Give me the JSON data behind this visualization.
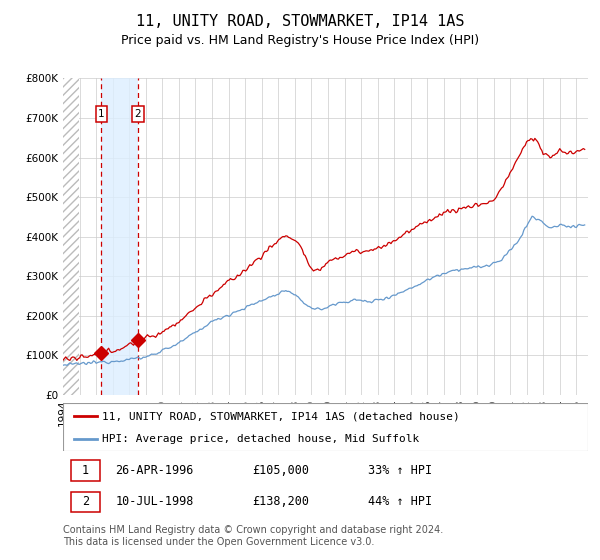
{
  "title": "11, UNITY ROAD, STOWMARKET, IP14 1AS",
  "subtitle": "Price paid vs. HM Land Registry's House Price Index (HPI)",
  "ylim": [
    0,
    800000
  ],
  "yticks": [
    0,
    100000,
    200000,
    300000,
    400000,
    500000,
    600000,
    700000,
    800000
  ],
  "ytick_labels": [
    "£0",
    "£100K",
    "£200K",
    "£300K",
    "£400K",
    "£500K",
    "£600K",
    "£700K",
    "£800K"
  ],
  "xlim_start": 1994.0,
  "xlim_end": 2025.7,
  "sale1_date": 1996.32,
  "sale1_price": 105000,
  "sale2_date": 1998.53,
  "sale2_price": 138200,
  "red_line_color": "#cc0000",
  "blue_line_color": "#6699cc",
  "highlight_color": "#ddeeff",
  "vline_color": "#cc0000",
  "grid_color": "#cccccc",
  "hatch_color": "#bbbbbb",
  "legend_label_red": "11, UNITY ROAD, STOWMARKET, IP14 1AS (detached house)",
  "legend_label_blue": "HPI: Average price, detached house, Mid Suffolk",
  "table_row1": [
    "1",
    "26-APR-1996",
    "£105,000",
    "33% ↑ HPI"
  ],
  "table_row2": [
    "2",
    "10-JUL-1998",
    "£138,200",
    "44% ↑ HPI"
  ],
  "footer": "Contains HM Land Registry data © Crown copyright and database right 2024.\nThis data is licensed under the Open Government Licence v3.0.",
  "title_fontsize": 11,
  "subtitle_fontsize": 9,
  "tick_fontsize": 7.5,
  "legend_fontsize": 8,
  "table_fontsize": 8.5,
  "footer_fontsize": 7
}
